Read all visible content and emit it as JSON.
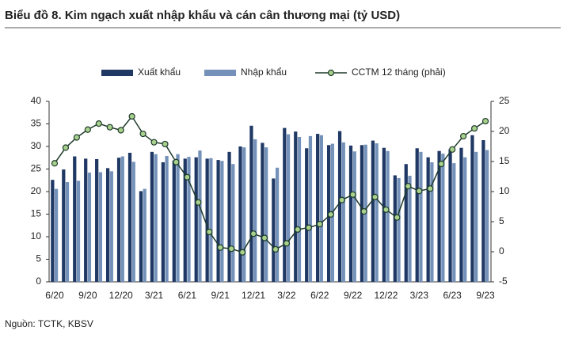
{
  "chart_data": {
    "type": "bar-line",
    "title": "Biểu đồ 8. Kim ngạch xuất nhập khẩu và cán cân thương mại (tỷ USD)",
    "source": "Nguồn: TCTK, KBSV",
    "categories": [
      "6/20",
      null,
      null,
      "9/20",
      null,
      null,
      "12/20",
      null,
      null,
      "3/21",
      null,
      null,
      "6/21",
      null,
      null,
      "9/21",
      null,
      null,
      "12/21",
      null,
      null,
      "3/22",
      null,
      null,
      "6/22",
      null,
      null,
      "9/22",
      null,
      null,
      "12/22",
      null,
      null,
      "3/23",
      null,
      null,
      "6/23",
      null,
      null,
      "9/23"
    ],
    "series": [
      {
        "name": "Xuất khẩu",
        "color": "#1f3864",
        "type": "bar",
        "values": [
          22.6,
          24.9,
          27.8,
          27.3,
          27.2,
          25.2,
          27.5,
          28.6,
          20.1,
          28.8,
          26.5,
          26.9,
          27.3,
          27.6,
          27.3,
          27.0,
          28.8,
          30.0,
          34.6,
          30.8,
          22.9,
          34.1,
          33.3,
          29.6,
          32.8,
          30.3,
          33.4,
          30.2,
          30.3,
          31.3,
          29.7,
          23.6,
          26.1,
          29.6,
          27.6,
          29.0,
          29.4,
          29.7,
          32.5,
          31.4
        ]
      },
      {
        "name": "Nhập khẩu",
        "color": "#7391b9",
        "type": "bar",
        "values": [
          20.6,
          22.1,
          22.4,
          24.2,
          24.3,
          24.5,
          27.8,
          26.6,
          20.6,
          28.3,
          27.9,
          28.3,
          27.7,
          29.1,
          27.4,
          26.8,
          26.1,
          29.8,
          31.6,
          29.8,
          25.3,
          32.7,
          32.1,
          32.3,
          32.5,
          30.6,
          30.9,
          28.9,
          30.4,
          30.7,
          29.0,
          23.0,
          23.5,
          28.8,
          26.5,
          28.4,
          26.3,
          27.6,
          28.8,
          29.2
        ]
      },
      {
        "name": "CCTM 12 tháng (phải)",
        "color": "#1e3a2a",
        "marker_color": "#a9d18e",
        "type": "line",
        "axis": "y2",
        "values": [
          14.7,
          17.3,
          19.0,
          20.3,
          21.3,
          20.7,
          20.2,
          22.5,
          19.6,
          18.2,
          17.9,
          14.9,
          12.4,
          8.2,
          3.3,
          0.7,
          0.5,
          -0.1,
          3.0,
          2.3,
          0.4,
          1.4,
          3.7,
          4.0,
          4.6,
          6.2,
          8.6,
          9.5,
          6.7,
          9.1,
          7.0,
          5.7,
          10.9,
          10.1,
          10.5,
          14.6,
          17.0,
          19.2,
          20.5,
          21.7
        ]
      }
    ],
    "ylim": [
      0,
      40
    ],
    "yticks": [
      0,
      5,
      10,
      15,
      20,
      25,
      30,
      35,
      40
    ],
    "y2lim": [
      -5,
      25
    ],
    "y2ticks": [
      -5,
      0,
      5,
      10,
      15,
      20,
      25
    ]
  }
}
